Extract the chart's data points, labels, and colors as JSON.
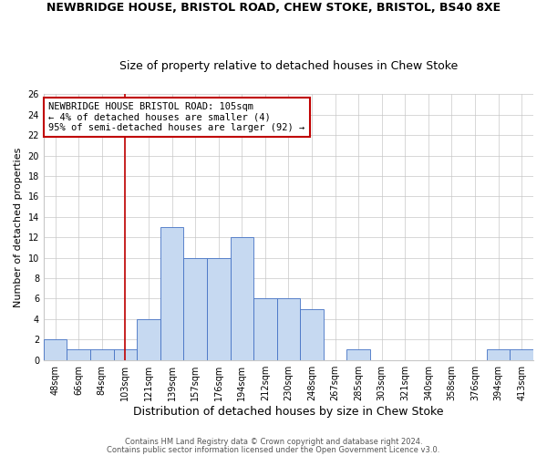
{
  "title": "NEWBRIDGE HOUSE, BRISTOL ROAD, CHEW STOKE, BRISTOL, BS40 8XE",
  "subtitle": "Size of property relative to detached houses in Chew Stoke",
  "xlabel": "Distribution of detached houses by size in Chew Stoke",
  "ylabel": "Number of detached properties",
  "footnote1": "Contains HM Land Registry data © Crown copyright and database right 2024.",
  "footnote2": "Contains public sector information licensed under the Open Government Licence v3.0.",
  "categories": [
    "48sqm",
    "66sqm",
    "84sqm",
    "103sqm",
    "121sqm",
    "139sqm",
    "157sqm",
    "176sqm",
    "194sqm",
    "212sqm",
    "230sqm",
    "248sqm",
    "267sqm",
    "285sqm",
    "303sqm",
    "321sqm",
    "340sqm",
    "358sqm",
    "376sqm",
    "394sqm",
    "413sqm"
  ],
  "values": [
    2,
    1,
    1,
    1,
    4,
    13,
    10,
    10,
    12,
    6,
    6,
    5,
    0,
    1,
    0,
    0,
    0,
    0,
    0,
    1,
    1
  ],
  "bar_color": "#c6d9f1",
  "bar_edge_color": "#4472c4",
  "highlight_index": 3,
  "highlight_line_color": "#c00000",
  "ylim": [
    0,
    26
  ],
  "yticks": [
    0,
    2,
    4,
    6,
    8,
    10,
    12,
    14,
    16,
    18,
    20,
    22,
    24,
    26
  ],
  "annotation_title": "NEWBRIDGE HOUSE BRISTOL ROAD: 105sqm",
  "annotation_line1": "← 4% of detached houses are smaller (4)",
  "annotation_line2": "95% of semi-detached houses are larger (92) →",
  "annotation_box_color": "#ffffff",
  "annotation_box_edge_color": "#c00000",
  "bg_color": "#ffffff",
  "grid_color": "#c8c8c8",
  "title_fontsize": 9,
  "subtitle_fontsize": 9,
  "xlabel_fontsize": 9,
  "ylabel_fontsize": 8,
  "tick_fontsize": 7,
  "annotation_fontsize": 7.5,
  "footnote_fontsize": 6
}
